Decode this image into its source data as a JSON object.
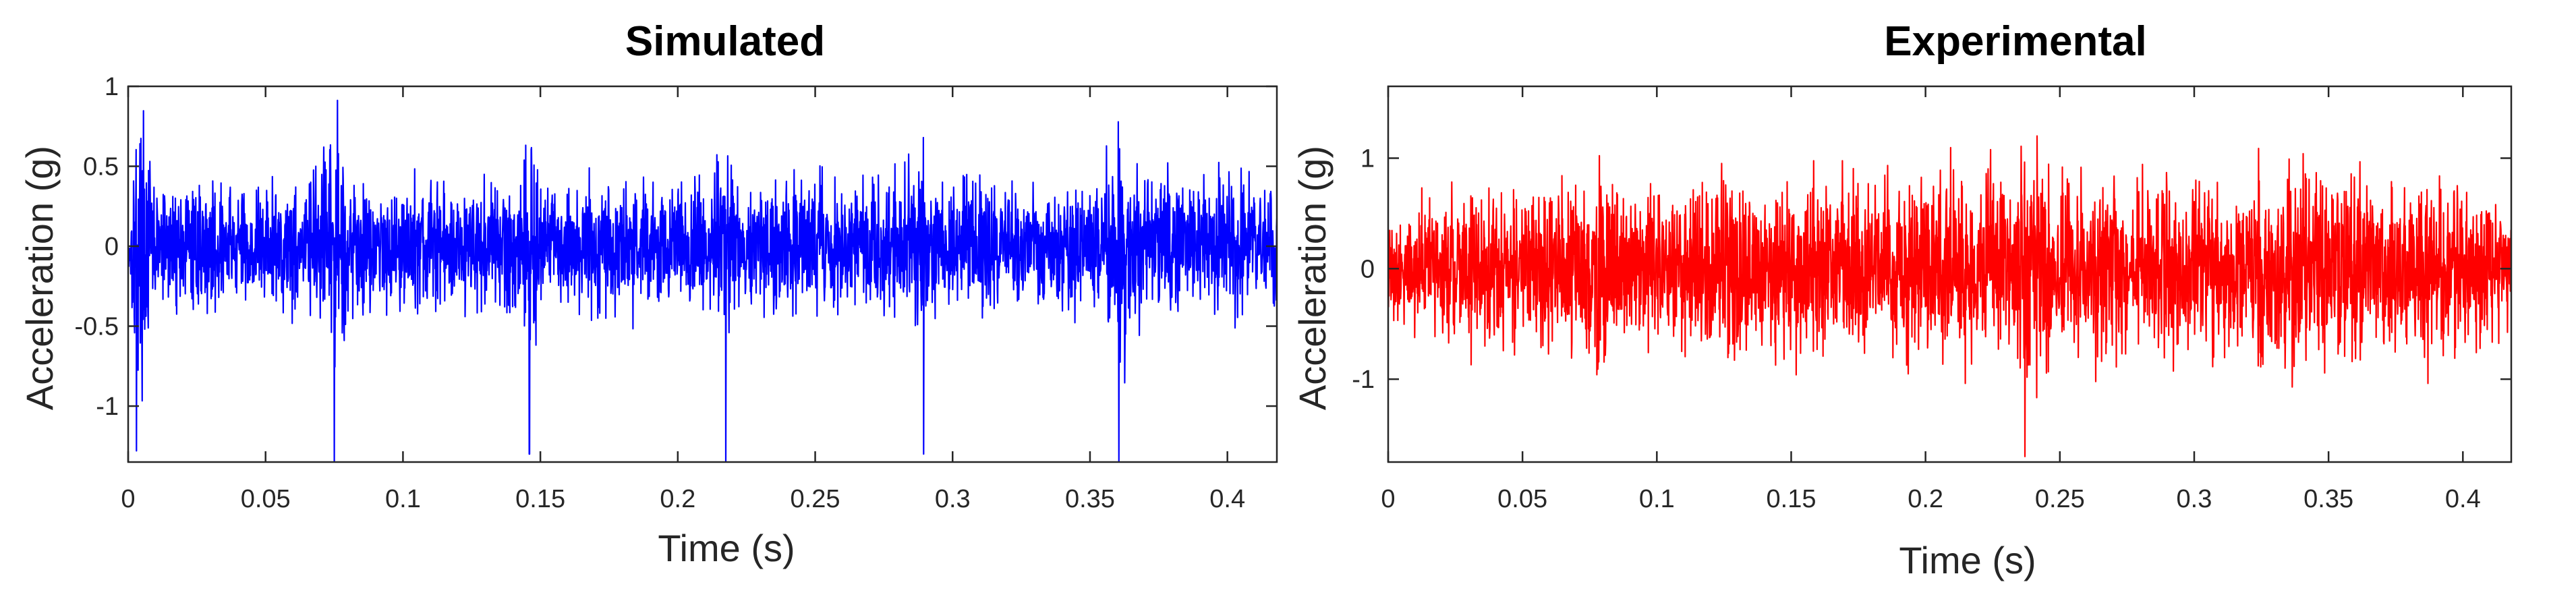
{
  "chart_data": [
    {
      "type": "line",
      "title": "Simulated",
      "xlabel": "Time (s)",
      "ylabel": "Acceleration (g)",
      "xlim": [
        0,
        0.418
      ],
      "ylim": [
        -1.35,
        1.0
      ],
      "xticks": [
        0,
        0.05,
        0.1,
        0.15,
        0.2,
        0.25,
        0.3,
        0.35,
        0.4
      ],
      "xtick_labels": [
        "0",
        "0.05",
        "0.1",
        "0.15",
        "0.2",
        "0.25",
        "0.3",
        "0.35",
        "0.4"
      ],
      "yticks": [
        -1,
        -0.5,
        0,
        0.5,
        1
      ],
      "ytick_labels": [
        "-1",
        "-0.5",
        "0",
        "0.5",
        "1"
      ],
      "grid": false,
      "series": [
        {
          "color": "#0000ff",
          "points_x": [
            0,
            0.002,
            0.003,
            0.01,
            0.02,
            0.03,
            0.04,
            0.05,
            0.06,
            0.07,
            0.0745,
            0.075,
            0.08,
            0.09,
            0.1,
            0.11,
            0.12,
            0.13,
            0.14,
            0.1455,
            0.146,
            0.15,
            0.16,
            0.17,
            0.18,
            0.19,
            0.2,
            0.21,
            0.216,
            0.2175,
            0.22,
            0.23,
            0.24,
            0.25,
            0.26,
            0.27,
            0.28,
            0.288,
            0.2895,
            0.29,
            0.3,
            0.31,
            0.32,
            0.33,
            0.34,
            0.35,
            0.3595,
            0.3605,
            0.37,
            0.38,
            0.39,
            0.4,
            0.41,
            0.418
          ],
          "points_y": [
            0.2,
            0.8,
            -1.28,
            0.55,
            0.5,
            0.55,
            0.52,
            0.55,
            0.6,
            0.65,
            0.85,
            -1.35,
            0.6,
            0.5,
            0.55,
            0.6,
            0.5,
            0.55,
            0.6,
            0.8,
            -1.3,
            0.55,
            0.5,
            0.55,
            0.6,
            0.5,
            0.55,
            0.6,
            0.82,
            -1.35,
            0.55,
            0.5,
            0.6,
            0.55,
            0.5,
            0.6,
            0.55,
            0.75,
            -1.3,
            0.55,
            0.5,
            0.6,
            0.5,
            0.55,
            0.6,
            0.55,
            0.85,
            -1.35,
            0.55,
            0.6,
            0.5,
            0.6,
            0.55,
            0.5
          ],
          "noise_amplitude": 0.55
        }
      ]
    },
    {
      "type": "line",
      "title": "Experimental",
      "xlabel": "Time (s)",
      "ylabel": "Acceleration (g)",
      "xlim": [
        0,
        0.418
      ],
      "ylim": [
        -1.75,
        1.65
      ],
      "xticks": [
        0,
        0.05,
        0.1,
        0.15,
        0.2,
        0.25,
        0.3,
        0.35,
        0.4
      ],
      "xtick_labels": [
        "0",
        "0.05",
        "0.1",
        "0.15",
        "0.2",
        "0.25",
        "0.3",
        "0.35",
        "0.4"
      ],
      "yticks": [
        -1,
        0,
        1
      ],
      "ytick_labels": [
        "-1",
        "0",
        "1"
      ],
      "grid": false,
      "series": [
        {
          "color": "#ff0000",
          "points_x": [
            0,
            0.02,
            0.04,
            0.06,
            0.075,
            0.09,
            0.105,
            0.12,
            0.14,
            0.16,
            0.18,
            0.2,
            0.22,
            0.237,
            0.25,
            0.27,
            0.29,
            0.31,
            0.33,
            0.35,
            0.37,
            0.39,
            0.41,
            0.418
          ],
          "points_y": [
            0.6,
            0.9,
            1.0,
            0.95,
            1.3,
            1.0,
            0.95,
            1.3,
            1.1,
            1.2,
            1.05,
            1.2,
            1.1,
            -1.7,
            1.2,
            1.0,
            1.2,
            1.05,
            1.3,
            1.3,
            1.0,
            1.1,
            1.0,
            0.6
          ],
          "noise_amplitude": 0.9
        }
      ]
    }
  ]
}
